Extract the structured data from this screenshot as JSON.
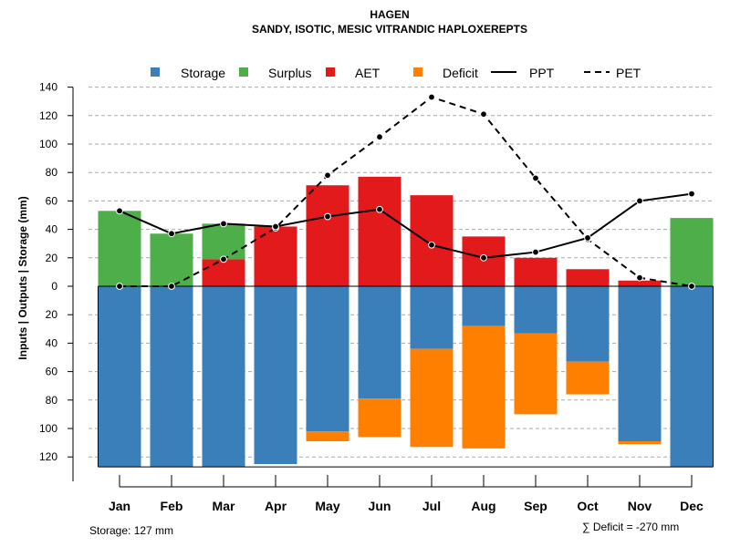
{
  "chart_data": {
    "type": "bar",
    "title": "HAGEN",
    "subtitle": "SANDY, ISOTIC, MESIC VITRANDIC HAPLOXEREPTS",
    "ylabel": "Inputs | Outputs | Storage   (mm)",
    "categories": [
      "Jan",
      "Feb",
      "Mar",
      "Apr",
      "May",
      "Jun",
      "Jul",
      "Aug",
      "Sep",
      "Oct",
      "Nov",
      "Dec"
    ],
    "ylim": [
      -127,
      140
    ],
    "yticks": [
      -120,
      -100,
      -80,
      -60,
      -40,
      -20,
      0,
      20,
      40,
      60,
      80,
      100,
      120,
      140
    ],
    "ytick_labels": [
      "120",
      "100",
      "80",
      "60",
      "40",
      "20",
      "0",
      "20",
      "40",
      "60",
      "80",
      "100",
      "120",
      "140"
    ],
    "grid": true,
    "legend_position": "top",
    "legend": {
      "storage": "Storage",
      "surplus": "Surplus",
      "aet": "AET",
      "deficit": "Deficit",
      "ppt": "PPT",
      "pet": "PET"
    },
    "colors": {
      "storage": "#3a7fba",
      "surplus": "#4dae4a",
      "aet": "#e31a1c",
      "deficit": "#ff7f00",
      "line": "#000000",
      "grid": "#aaaaaa"
    },
    "series": {
      "AET": [
        0,
        0,
        19,
        42,
        71,
        77,
        64,
        35,
        20,
        12,
        4,
        0
      ],
      "Surplus": [
        53,
        37,
        25,
        0,
        0,
        0,
        0,
        0,
        0,
        0,
        0,
        48
      ],
      "Storage": [
        127,
        127,
        127,
        125,
        102,
        79,
        44,
        28,
        33,
        53,
        109,
        127
      ],
      "Deficit": [
        0,
        0,
        0,
        0,
        7,
        27,
        69,
        86,
        57,
        23,
        2,
        0
      ],
      "PPT": [
        53,
        37,
        44,
        42,
        49,
        54,
        29,
        20,
        24,
        34,
        60,
        65
      ],
      "PET": [
        0,
        0,
        19,
        41,
        78,
        105,
        133,
        121,
        76,
        33,
        6,
        0
      ]
    }
  },
  "footer": {
    "storage_note": "Storage: 127 mm",
    "deficit_note": "∑ Deficit = -270 mm"
  }
}
